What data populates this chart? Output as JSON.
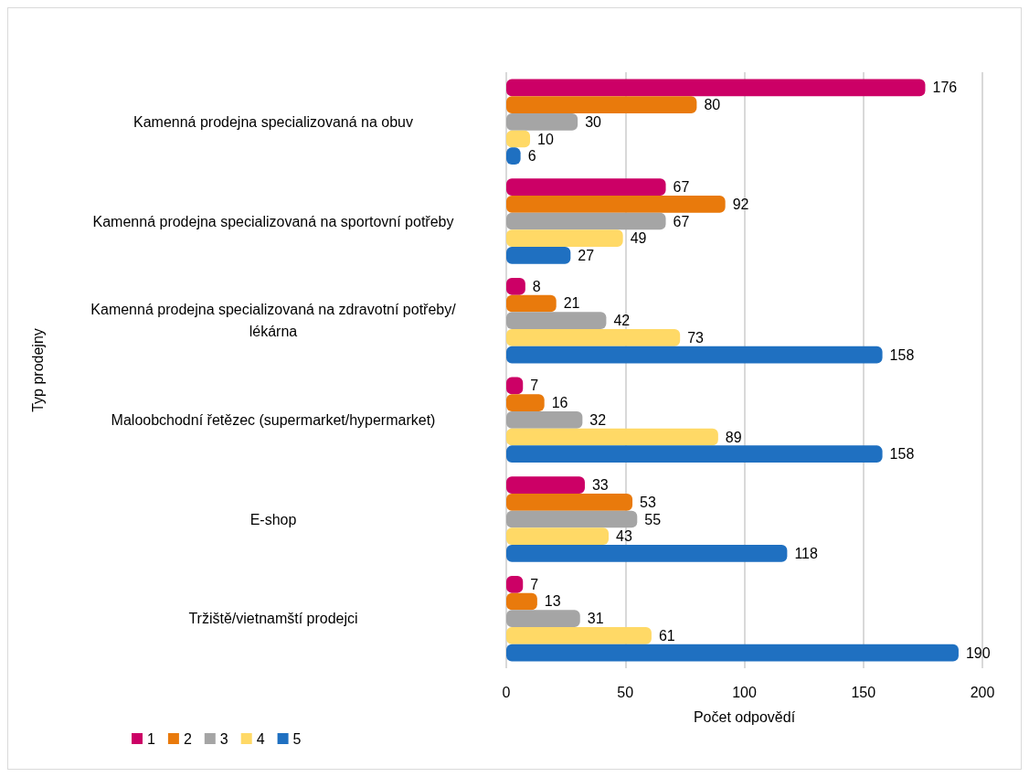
{
  "chart_data": {
    "type": "bar",
    "orientation": "horizontal",
    "xlabel": "Počet odpovědí",
    "ylabel": "Typ prodejny",
    "categories": [
      "Kamenná prodejna specializovaná na obuv",
      "Kamenná prodejna specializovaná na sportovní potřeby",
      "Kamenná prodejna specializovaná na zdravotní potřeby/lékárna",
      "Maloobchodní řetězec (supermarket/hypermarket)",
      "E-shop",
      "Tržiště/vietnamští prodejci"
    ],
    "series": [
      {
        "name": "1",
        "color": "#cc0066",
        "values": [
          176,
          67,
          8,
          7,
          33,
          7
        ]
      },
      {
        "name": "2",
        "color": "#e97a0c",
        "values": [
          80,
          92,
          21,
          16,
          53,
          13
        ]
      },
      {
        "name": "3",
        "color": "#a5a5a5",
        "values": [
          30,
          67,
          42,
          32,
          55,
          31
        ]
      },
      {
        "name": "4",
        "color": "#ffd966",
        "values": [
          10,
          49,
          73,
          89,
          43,
          61
        ]
      },
      {
        "name": "5",
        "color": "#1f70c1",
        "values": [
          6,
          27,
          158,
          158,
          118,
          190
        ]
      }
    ],
    "xlim": [
      0,
      200
    ],
    "xticks": [
      0,
      50,
      100,
      150,
      200
    ],
    "grid": "x",
    "legend": "bottom left",
    "data_labels": true
  }
}
